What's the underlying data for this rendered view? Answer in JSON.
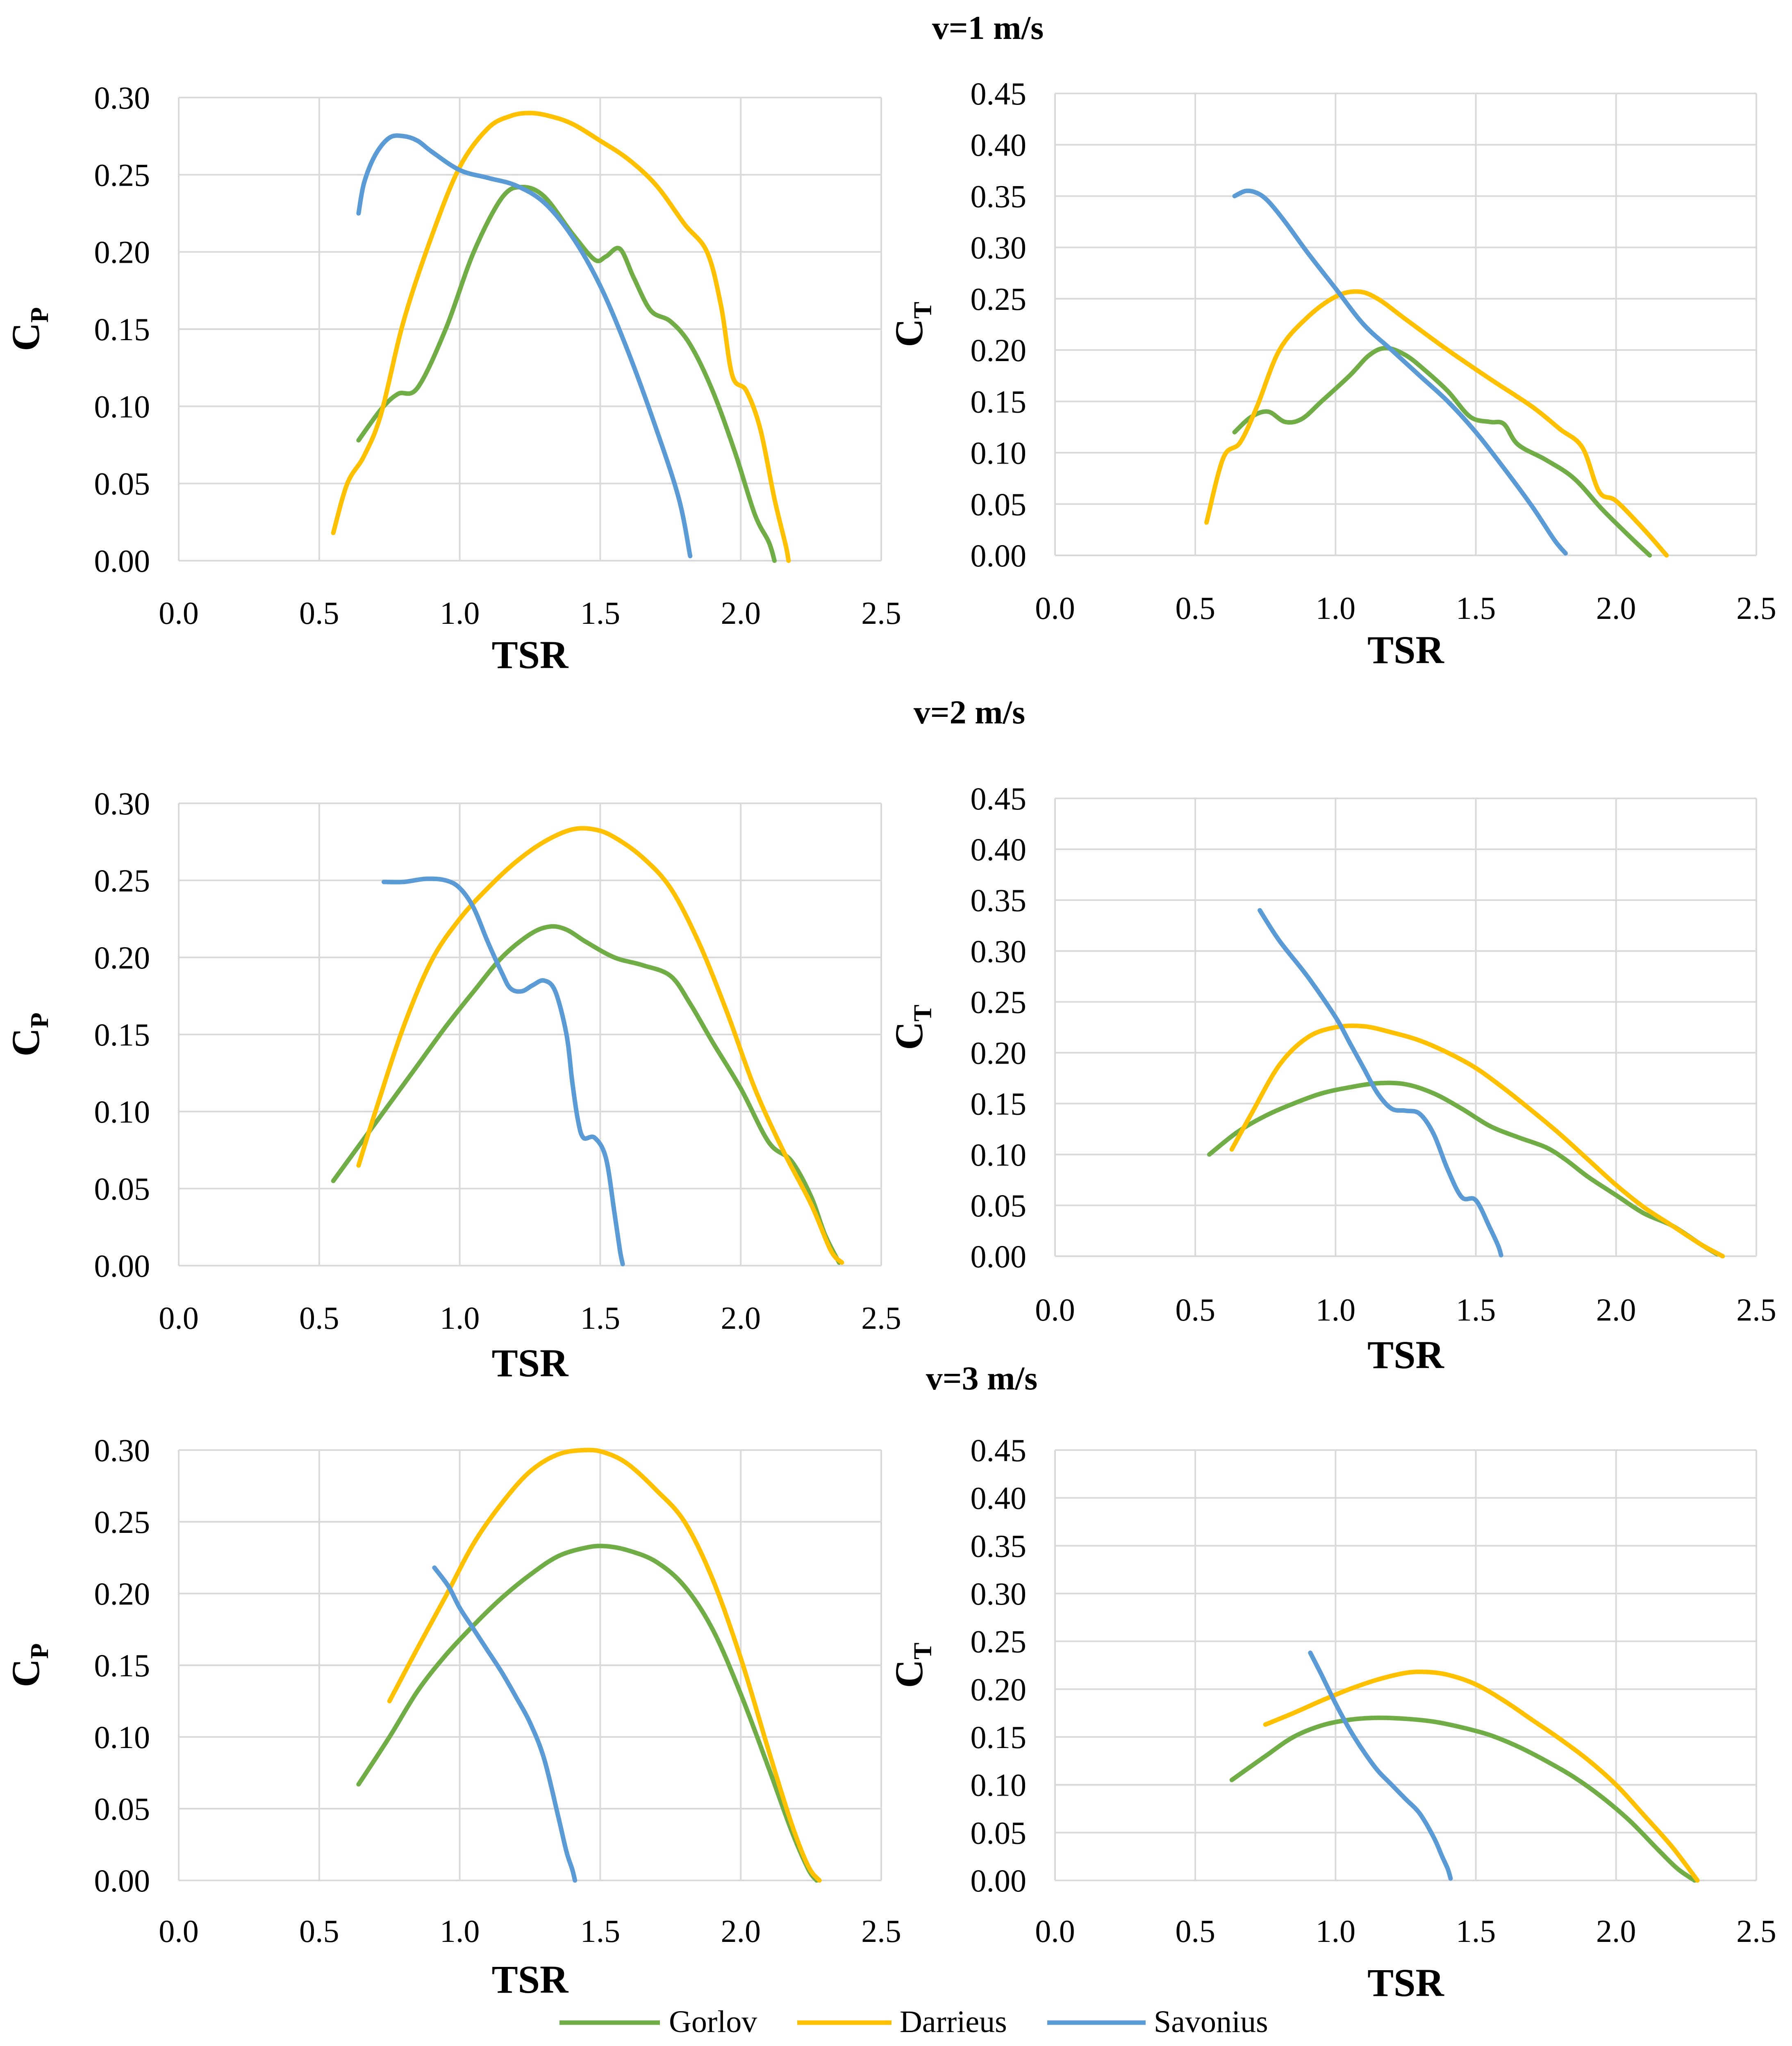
{
  "colors": {
    "Gorlov": "#70ad47",
    "Darrieus": "#ffc000",
    "Savonius": "#5b9bd5"
  },
  "legend": [
    "Gorlov",
    "Darrieus",
    "Savonius"
  ],
  "chart_data": [
    {
      "id": "v1-cp",
      "type": "line",
      "title": "v=1 m/s",
      "xlabel": "TSR",
      "ylabel": "C",
      "ylabel_sub": "P",
      "xlim": [
        0,
        2.5
      ],
      "ylim": [
        0,
        0.3
      ],
      "xticks": [
        "0.0",
        "0.5",
        "1.0",
        "1.5",
        "2.0",
        "2.5"
      ],
      "yticks": [
        "0.00",
        "0.05",
        "0.10",
        "0.15",
        "0.20",
        "0.25",
        "0.30"
      ],
      "series": [
        {
          "name": "Gorlov",
          "x": [
            0.64,
            0.72,
            0.78,
            0.85,
            0.95,
            1.05,
            1.15,
            1.22,
            1.3,
            1.4,
            1.48,
            1.52,
            1.57,
            1.62,
            1.68,
            1.75,
            1.82,
            1.9,
            1.98,
            2.05,
            2.1,
            2.12
          ],
          "y": [
            0.078,
            0.098,
            0.108,
            0.112,
            0.15,
            0.2,
            0.235,
            0.242,
            0.236,
            0.212,
            0.195,
            0.197,
            0.202,
            0.183,
            0.162,
            0.155,
            0.14,
            0.11,
            0.07,
            0.03,
            0.012,
            0.0
          ]
        },
        {
          "name": "Darrieus",
          "x": [
            0.55,
            0.6,
            0.66,
            0.72,
            0.8,
            0.9,
            1.0,
            1.1,
            1.18,
            1.25,
            1.32,
            1.4,
            1.5,
            1.6,
            1.7,
            1.8,
            1.88,
            1.93,
            1.97,
            2.02,
            2.07,
            2.12,
            2.16,
            2.17
          ],
          "y": [
            0.018,
            0.05,
            0.068,
            0.095,
            0.155,
            0.21,
            0.255,
            0.28,
            0.288,
            0.29,
            0.288,
            0.283,
            0.272,
            0.26,
            0.243,
            0.218,
            0.2,
            0.165,
            0.12,
            0.11,
            0.085,
            0.04,
            0.01,
            0.0
          ]
        },
        {
          "name": "Savonius",
          "x": [
            0.64,
            0.66,
            0.7,
            0.75,
            0.8,
            0.85,
            0.9,
            1.0,
            1.1,
            1.2,
            1.3,
            1.4,
            1.5,
            1.6,
            1.7,
            1.78,
            1.82
          ],
          "y": [
            0.225,
            0.245,
            0.263,
            0.274,
            0.275,
            0.272,
            0.265,
            0.253,
            0.248,
            0.243,
            0.232,
            0.21,
            0.178,
            0.135,
            0.085,
            0.04,
            0.003
          ]
        }
      ]
    },
    {
      "id": "v1-ct",
      "type": "line",
      "title": "",
      "xlabel": "TSR",
      "ylabel": "C",
      "ylabel_sub": "T",
      "xlim": [
        0,
        2.5
      ],
      "ylim": [
        0,
        0.45
      ],
      "xticks": [
        "0.0",
        "0.5",
        "1.0",
        "1.5",
        "2.0",
        "2.5"
      ],
      "yticks": [
        "0.00",
        "0.05",
        "0.10",
        "0.15",
        "0.20",
        "0.25",
        "0.30",
        "0.35",
        "0.40",
        "0.45"
      ],
      "series": [
        {
          "name": "Gorlov",
          "x": [
            0.64,
            0.7,
            0.76,
            0.82,
            0.88,
            0.95,
            1.05,
            1.12,
            1.18,
            1.25,
            1.32,
            1.4,
            1.48,
            1.55,
            1.6,
            1.65,
            1.75,
            1.85,
            1.95,
            2.05,
            2.12
          ],
          "y": [
            0.12,
            0.135,
            0.14,
            0.13,
            0.133,
            0.15,
            0.175,
            0.195,
            0.202,
            0.195,
            0.18,
            0.16,
            0.135,
            0.13,
            0.128,
            0.108,
            0.093,
            0.075,
            0.045,
            0.018,
            0.0
          ]
        },
        {
          "name": "Darrieus",
          "x": [
            0.54,
            0.6,
            0.66,
            0.72,
            0.8,
            0.9,
            1.0,
            1.08,
            1.15,
            1.25,
            1.4,
            1.55,
            1.7,
            1.8,
            1.88,
            1.94,
            2.0,
            2.1,
            2.18
          ],
          "y": [
            0.032,
            0.095,
            0.11,
            0.145,
            0.2,
            0.232,
            0.252,
            0.257,
            0.25,
            0.23,
            0.2,
            0.172,
            0.145,
            0.123,
            0.105,
            0.062,
            0.053,
            0.025,
            0.0
          ]
        },
        {
          "name": "Savonius",
          "x": [
            0.64,
            0.68,
            0.72,
            0.76,
            0.82,
            0.9,
            1.0,
            1.1,
            1.2,
            1.3,
            1.4,
            1.5,
            1.6,
            1.7,
            1.78,
            1.82
          ],
          "y": [
            0.35,
            0.355,
            0.353,
            0.345,
            0.325,
            0.295,
            0.26,
            0.225,
            0.2,
            0.175,
            0.15,
            0.12,
            0.085,
            0.048,
            0.015,
            0.002
          ]
        }
      ]
    },
    {
      "id": "v2-cp",
      "type": "line",
      "title": "v=2 m/s",
      "xlabel": "TSR",
      "ylabel": "C",
      "ylabel_sub": "P",
      "xlim": [
        0,
        2.5
      ],
      "ylim": [
        0,
        0.3
      ],
      "xticks": [
        "0.0",
        "0.5",
        "1.0",
        "1.5",
        "2.0",
        "2.5"
      ],
      "yticks": [
        "0.00",
        "0.05",
        "0.10",
        "0.15",
        "0.20",
        "0.25",
        "0.30"
      ],
      "series": [
        {
          "name": "Gorlov",
          "x": [
            0.55,
            0.65,
            0.75,
            0.85,
            0.95,
            1.05,
            1.15,
            1.25,
            1.32,
            1.38,
            1.45,
            1.55,
            1.65,
            1.75,
            1.82,
            1.9,
            2.0,
            2.1,
            2.18,
            2.25,
            2.3,
            2.35
          ],
          "y": [
            0.055,
            0.08,
            0.105,
            0.13,
            0.155,
            0.178,
            0.2,
            0.215,
            0.22,
            0.218,
            0.21,
            0.2,
            0.195,
            0.188,
            0.17,
            0.145,
            0.115,
            0.08,
            0.068,
            0.045,
            0.02,
            0.002
          ]
        },
        {
          "name": "Darrieus",
          "x": [
            0.64,
            0.7,
            0.8,
            0.9,
            1.0,
            1.1,
            1.2,
            1.3,
            1.4,
            1.48,
            1.55,
            1.65,
            1.75,
            1.85,
            1.95,
            2.05,
            2.15,
            2.25,
            2.32,
            2.36
          ],
          "y": [
            0.065,
            0.1,
            0.155,
            0.198,
            0.225,
            0.245,
            0.262,
            0.275,
            0.283,
            0.283,
            0.278,
            0.265,
            0.245,
            0.21,
            0.165,
            0.115,
            0.075,
            0.04,
            0.01,
            0.002
          ]
        },
        {
          "name": "Savonius",
          "x": [
            0.73,
            0.8,
            0.88,
            0.95,
            1.0,
            1.05,
            1.1,
            1.15,
            1.18,
            1.22,
            1.26,
            1.3,
            1.34,
            1.38,
            1.4,
            1.42,
            1.44,
            1.48,
            1.52,
            1.55,
            1.57,
            1.58
          ],
          "y": [
            0.249,
            0.249,
            0.251,
            0.25,
            0.245,
            0.232,
            0.21,
            0.19,
            0.18,
            0.178,
            0.182,
            0.185,
            0.178,
            0.15,
            0.12,
            0.095,
            0.083,
            0.083,
            0.07,
            0.035,
            0.01,
            0.001
          ]
        }
      ]
    },
    {
      "id": "v2-ct",
      "type": "line",
      "title": "",
      "xlabel": "TSR",
      "ylabel": "C",
      "ylabel_sub": "T",
      "xlim": [
        0,
        2.5
      ],
      "ylim": [
        0,
        0.45
      ],
      "xticks": [
        "0.0",
        "0.5",
        "1.0",
        "1.5",
        "2.0",
        "2.5"
      ],
      "yticks": [
        "0.00",
        "0.05",
        "0.10",
        "0.15",
        "0.20",
        "0.25",
        "0.30",
        "0.35",
        "0.40",
        "0.45"
      ],
      "series": [
        {
          "name": "Gorlov",
          "x": [
            0.55,
            0.65,
            0.75,
            0.85,
            0.95,
            1.05,
            1.15,
            1.25,
            1.35,
            1.45,
            1.55,
            1.65,
            1.75,
            1.82,
            1.9,
            2.0,
            2.1,
            2.2,
            2.3,
            2.36
          ],
          "y": [
            0.1,
            0.122,
            0.138,
            0.15,
            0.16,
            0.166,
            0.17,
            0.169,
            0.16,
            0.145,
            0.128,
            0.117,
            0.107,
            0.095,
            0.078,
            0.06,
            0.042,
            0.03,
            0.012,
            0.002
          ]
        },
        {
          "name": "Darrieus",
          "x": [
            0.63,
            0.7,
            0.8,
            0.9,
            1.0,
            1.1,
            1.2,
            1.3,
            1.4,
            1.5,
            1.6,
            1.7,
            1.8,
            1.9,
            2.0,
            2.1,
            2.2,
            2.3,
            2.38
          ],
          "y": [
            0.105,
            0.14,
            0.188,
            0.215,
            0.225,
            0.226,
            0.22,
            0.212,
            0.2,
            0.185,
            0.165,
            0.143,
            0.12,
            0.095,
            0.07,
            0.048,
            0.03,
            0.012,
            0.0
          ]
        },
        {
          "name": "Savonius",
          "x": [
            0.73,
            0.8,
            0.9,
            1.0,
            1.05,
            1.1,
            1.15,
            1.2,
            1.25,
            1.3,
            1.35,
            1.4,
            1.45,
            1.5,
            1.55,
            1.58,
            1.59
          ],
          "y": [
            0.34,
            0.31,
            0.275,
            0.235,
            0.21,
            0.185,
            0.16,
            0.145,
            0.143,
            0.14,
            0.12,
            0.085,
            0.058,
            0.055,
            0.028,
            0.01,
            0.001
          ]
        }
      ]
    },
    {
      "id": "v3-cp",
      "type": "line",
      "title": "v=3 m/s",
      "xlabel": "TSR",
      "ylabel": "C",
      "ylabel_sub": "P",
      "xlim": [
        0,
        2.5
      ],
      "ylim": [
        0,
        0.3
      ],
      "xticks": [
        "0.0",
        "0.5",
        "1.0",
        "1.5",
        "2.0",
        "2.5"
      ],
      "yticks": [
        "0.00",
        "0.05",
        "0.10",
        "0.15",
        "0.20",
        "0.25",
        "0.30"
      ],
      "series": [
        {
          "name": "Gorlov",
          "x": [
            0.64,
            0.75,
            0.85,
            0.95,
            1.05,
            1.15,
            1.25,
            1.35,
            1.45,
            1.52,
            1.6,
            1.7,
            1.8,
            1.9,
            2.0,
            2.1,
            2.18,
            2.24,
            2.27
          ],
          "y": [
            0.067,
            0.1,
            0.132,
            0.157,
            0.178,
            0.197,
            0.213,
            0.226,
            0.232,
            0.233,
            0.23,
            0.222,
            0.205,
            0.175,
            0.13,
            0.078,
            0.035,
            0.008,
            0.0
          ]
        },
        {
          "name": "Darrieus",
          "x": [
            0.75,
            0.85,
            0.95,
            1.05,
            1.15,
            1.25,
            1.35,
            1.45,
            1.52,
            1.6,
            1.7,
            1.8,
            1.9,
            2.0,
            2.1,
            2.18,
            2.24,
            2.28
          ],
          "y": [
            0.125,
            0.162,
            0.198,
            0.235,
            0.263,
            0.285,
            0.297,
            0.3,
            0.298,
            0.29,
            0.272,
            0.25,
            0.21,
            0.155,
            0.09,
            0.04,
            0.01,
            0.0
          ]
        },
        {
          "name": "Savonius",
          "x": [
            0.91,
            0.96,
            1.0,
            1.05,
            1.1,
            1.15,
            1.2,
            1.25,
            1.3,
            1.35,
            1.38,
            1.4,
            1.41
          ],
          "y": [
            0.218,
            0.205,
            0.19,
            0.175,
            0.16,
            0.145,
            0.128,
            0.11,
            0.085,
            0.045,
            0.02,
            0.008,
            0.0
          ]
        }
      ]
    },
    {
      "id": "v3-ct",
      "type": "line",
      "title": "",
      "xlabel": "TSR",
      "ylabel": "C",
      "ylabel_sub": "T",
      "xlim": [
        0,
        2.5
      ],
      "ylim": [
        0,
        0.45
      ],
      "xticks": [
        "0.0",
        "0.5",
        "1.0",
        "1.5",
        "2.0",
        "2.5"
      ],
      "yticks": [
        "0.00",
        "0.05",
        "0.10",
        "0.15",
        "0.20",
        "0.25",
        "0.30",
        "0.35",
        "0.40",
        "0.45"
      ],
      "series": [
        {
          "name": "Gorlov",
          "x": [
            0.63,
            0.75,
            0.85,
            0.95,
            1.05,
            1.15,
            1.25,
            1.35,
            1.45,
            1.55,
            1.65,
            1.75,
            1.85,
            1.95,
            2.05,
            2.15,
            2.22,
            2.28
          ],
          "y": [
            0.105,
            0.13,
            0.15,
            0.162,
            0.168,
            0.17,
            0.169,
            0.166,
            0.16,
            0.152,
            0.14,
            0.125,
            0.108,
            0.087,
            0.062,
            0.032,
            0.012,
            0.0
          ]
        },
        {
          "name": "Darrieus",
          "x": [
            0.75,
            0.85,
            0.95,
            1.05,
            1.15,
            1.25,
            1.32,
            1.4,
            1.5,
            1.6,
            1.7,
            1.8,
            1.9,
            2.0,
            2.1,
            2.2,
            2.29
          ],
          "y": [
            0.163,
            0.175,
            0.188,
            0.2,
            0.21,
            0.217,
            0.218,
            0.215,
            0.205,
            0.188,
            0.168,
            0.148,
            0.126,
            0.1,
            0.068,
            0.035,
            0.0
          ]
        },
        {
          "name": "Savonius",
          "x": [
            0.91,
            0.95,
            1.0,
            1.05,
            1.1,
            1.15,
            1.2,
            1.25,
            1.3,
            1.35,
            1.38,
            1.4,
            1.41
          ],
          "y": [
            0.238,
            0.215,
            0.185,
            0.158,
            0.135,
            0.115,
            0.1,
            0.085,
            0.07,
            0.045,
            0.025,
            0.012,
            0.002
          ]
        }
      ]
    }
  ]
}
